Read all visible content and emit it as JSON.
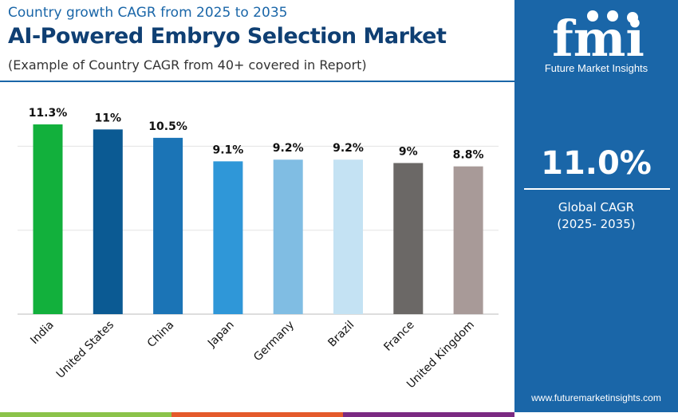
{
  "header": {
    "subtitle": "Country growth CAGR from 2025 to 2035",
    "title": "AI-Powered Embryo Selection Market",
    "note": "(Example of Country CAGR from 40+ covered in Report)"
  },
  "sidebar": {
    "brand": "Future Market Insights",
    "logo_text": "fmi",
    "value": "11.0%",
    "label": "Global CAGR",
    "period": "(2025- 2035)",
    "url": "www.futuremarketinsights.com",
    "background": "#1a66a8"
  },
  "footer_colors": [
    "#8bc34a",
    "#e55a2b",
    "#7b2a82"
  ],
  "chart_data": {
    "type": "bar",
    "categories": [
      "India",
      "United States",
      "China",
      "Japan",
      "Germany",
      "Brazil",
      "France",
      "United Kingdom"
    ],
    "values": [
      11.3,
      11,
      10.5,
      9.1,
      9.2,
      9.2,
      9,
      8.8
    ],
    "labels": [
      "11.3%",
      "11%",
      "10.5%",
      "9.1%",
      "9.2%",
      "9.2%",
      "9%",
      "8.8%"
    ],
    "colors": [
      "#12b03c",
      "#0b5a93",
      "#1b74b6",
      "#2f97d8",
      "#80bde3",
      "#c4e2f3",
      "#6b6866",
      "#a89a98"
    ],
    "ylim": [
      0,
      13
    ],
    "grid": true,
    "gridlines": [
      5,
      10
    ],
    "title": "",
    "xlabel": "",
    "ylabel": ""
  }
}
